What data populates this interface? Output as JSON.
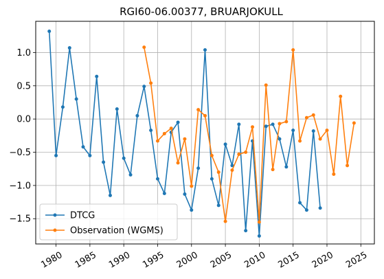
{
  "chart_data": {
    "type": "line",
    "title": "RGI60-06.00377, BRUARJOKULL",
    "xlabel": "",
    "ylabel": "",
    "xlim": [
      1977,
      2027
    ],
    "ylim": [
      -1.88,
      1.47
    ],
    "grid": true,
    "legend_position": "lower left",
    "x_ticks": [
      1980,
      1985,
      1990,
      1995,
      2000,
      2005,
      2010,
      2015,
      2020,
      2025
    ],
    "x_tick_labels": [
      "1980",
      "1985",
      "1990",
      "1995",
      "2000",
      "2005",
      "2010",
      "2015",
      "2020",
      "2025"
    ],
    "y_ticks": [
      1.0,
      0.5,
      0.0,
      -0.5,
      -1.0,
      -1.5
    ],
    "y_tick_labels": [
      "1.0",
      "0.5",
      "0.0",
      "−0.5",
      "−1.0",
      "−1.5"
    ],
    "series": [
      {
        "name": "DTCG",
        "color": "#1f77b4",
        "x": [
          1979,
          1980,
          1981,
          1982,
          1983,
          1984,
          1985,
          1986,
          1987,
          1988,
          1989,
          1990,
          1991,
          1992,
          1993,
          1994,
          1995,
          1996,
          1997,
          1998,
          1999,
          2000,
          2001,
          2002,
          2003,
          2004,
          2005,
          2006,
          2007,
          2008,
          2009,
          2010,
          2011,
          2012,
          2013,
          2014,
          2015,
          2016,
          2017,
          2018,
          2019
        ],
        "y": [
          1.32,
          -0.55,
          0.18,
          1.07,
          0.3,
          -0.42,
          -0.55,
          0.64,
          -0.65,
          -1.15,
          0.15,
          -0.59,
          -0.84,
          0.05,
          0.49,
          -0.17,
          -0.9,
          -1.12,
          -0.2,
          -0.05,
          -1.13,
          -1.37,
          -0.74,
          1.04,
          -0.9,
          -1.3,
          -0.38,
          -0.7,
          -0.08,
          -1.68,
          -0.33,
          -1.76,
          -0.11,
          -0.08,
          -0.3,
          -0.72,
          -0.17,
          -1.26,
          -1.37,
          -0.18,
          -1.34
        ]
      },
      {
        "name": "Observation (WGMS)",
        "color": "#ff7f0e",
        "x": [
          1993,
          1994,
          1995,
          1996,
          1997,
          1998,
          1999,
          2000,
          2001,
          2002,
          2003,
          2004,
          2005,
          2006,
          2007,
          2008,
          2009,
          2010,
          2011,
          2012,
          2013,
          2014,
          2015,
          2016,
          2017,
          2018,
          2019,
          2020,
          2021,
          2022,
          2023,
          2024
        ],
        "y": [
          1.08,
          0.54,
          -0.33,
          -0.22,
          -0.14,
          -0.66,
          -0.3,
          -1.01,
          0.14,
          0.05,
          -0.55,
          -0.8,
          -1.54,
          -0.77,
          -0.53,
          -0.5,
          -0.12,
          -1.55,
          0.51,
          -0.76,
          -0.07,
          -0.04,
          1.04,
          -0.33,
          0.02,
          0.06,
          -0.3,
          -0.17,
          -0.83,
          0.34,
          -0.7,
          -0.06
        ]
      }
    ]
  }
}
